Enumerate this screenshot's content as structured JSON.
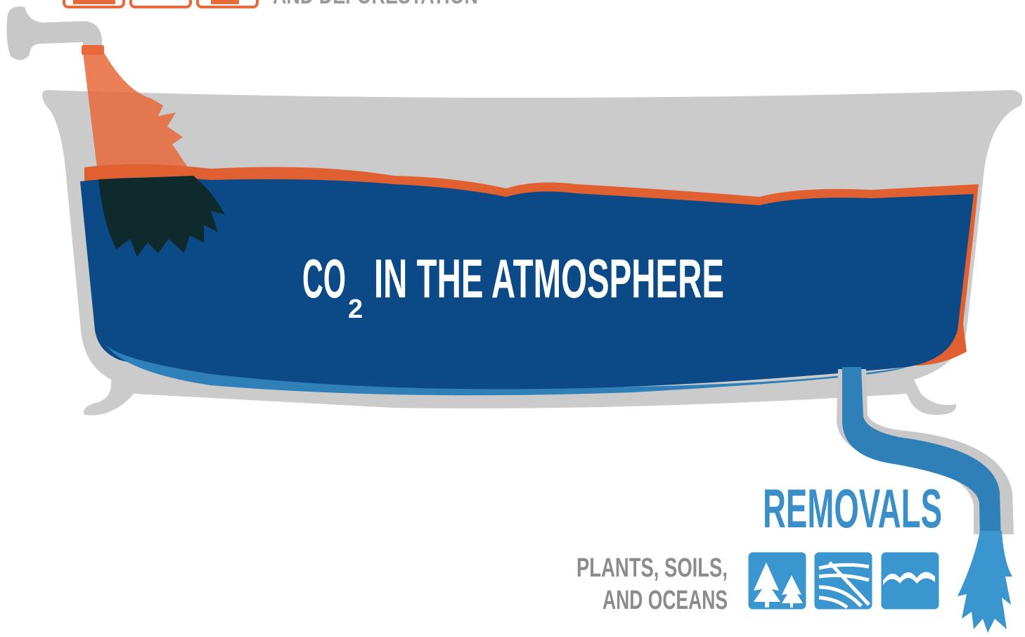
{
  "header": {
    "caption": "AND DEFORESTATION"
  },
  "tub": {
    "label": "CO",
    "subscript": "2",
    "label_rest": "IN THE ATMOSPHERE"
  },
  "removals": {
    "title": "REMOVALS",
    "lines": [
      "PLANTS, SOILS,",
      "AND OCEANS"
    ]
  }
}
